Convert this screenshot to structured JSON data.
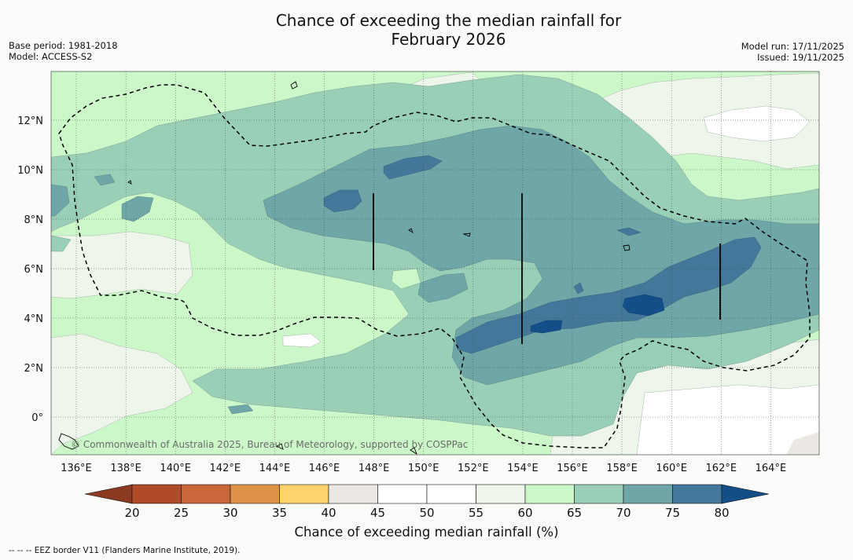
{
  "title_line1": "Chance of exceeding the median rainfall for",
  "title_line2": "February 2026",
  "meta_left": {
    "base_period": "Base period: 1981-2018",
    "model": "Model: ACCESS-S2"
  },
  "meta_right": {
    "model_run": "Model run: 17/11/2025",
    "issued": "Issued: 19/11/2025"
  },
  "copyright": "© Commonwealth of Australia 2025, Bureau of Meteorology, supported by COSPPac",
  "footer": "-- -- -- EEZ border V11 (Flanders Marine Institute, 2019).",
  "map_data": {
    "lon_ticks": [
      "136°E",
      "138°E",
      "140°E",
      "142°E",
      "144°E",
      "146°E",
      "148°E",
      "150°E",
      "152°E",
      "154°E",
      "156°E",
      "158°E",
      "160°E",
      "162°E",
      "164°E"
    ],
    "lat_ticks": [
      "12°N",
      "10°N",
      "8°N",
      "6°N",
      "4°N",
      "2°N",
      "0°"
    ]
  },
  "colorbar": {
    "label": "Chance of exceeding median rainfall (%)",
    "ticks": [
      "20",
      "25",
      "30",
      "35",
      "40",
      "45",
      "50",
      "55",
      "60",
      "65",
      "70",
      "75",
      "80"
    ],
    "colors": [
      "#b14a28",
      "#c9673a",
      "#de9248",
      "#ffd36b",
      "#ebe8e3",
      "#ffffff",
      "#ffffff",
      "#eef6ec",
      "#ccf8c9",
      "#9acfb7",
      "#6fa6a8",
      "#44789a"
    ],
    "under_color": "#8c3a22",
    "over_color": "#144e89"
  },
  "colors": {
    "c55": "#eef6ec",
    "c60": "#ccf8c9",
    "c65": "#9acfb7",
    "c70": "#6fa6a8",
    "c75": "#44789a",
    "c80": "#144e89"
  }
}
